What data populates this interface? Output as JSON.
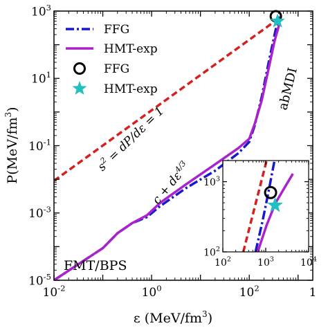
{
  "chart_data": [
    {
      "type": "line",
      "xlabel": "ε (MeV/fm",
      "xlabel_sup": "3",
      "xlabel_end": ")",
      "ylabel": "P(MeV/fm",
      "ylabel_sup": "3",
      "ylabel_end": ")",
      "x_scale": "log",
      "y_scale": "log",
      "xlim": [
        0.01,
        2000
      ],
      "ylim": [
        1e-05,
        1000
      ],
      "x_ticks": [
        {
          "v": 0.01,
          "base": "10",
          "exp": "-2"
        },
        {
          "v": 1,
          "base": "10",
          "exp": "0"
        },
        {
          "v": 100,
          "base": "10",
          "exp": "2"
        },
        {
          "v": 2000,
          "base": "1",
          "exp": ""
        }
      ],
      "y_ticks": [
        {
          "v": 1e-05,
          "base": "10",
          "exp": "-5"
        },
        {
          "v": 0.001,
          "base": "10",
          "exp": "-3"
        },
        {
          "v": 0.1,
          "base": "10",
          "exp": "-1"
        },
        {
          "v": 10,
          "base": "10",
          "exp": "1"
        },
        {
          "v": 1000,
          "base": "10",
          "exp": "3"
        }
      ],
      "grid": false,
      "legend_position": "top-left",
      "series": [
        {
          "name": "FFG",
          "style": "dashdot",
          "color": "#1818d0",
          "x": [
            0.01,
            0.1,
            0.2,
            0.4,
            0.8,
            1.5,
            5,
            20,
            60,
            100,
            130,
            180,
            250,
            330,
            400
          ],
          "y": [
            1e-05,
            9e-05,
            0.00025,
            0.0005,
            0.00075,
            0.0016,
            0.0054,
            0.018,
            0.06,
            0.13,
            0.4,
            2.8,
            30,
            200,
            700
          ]
        },
        {
          "name": "HMT-exp",
          "style": "solid",
          "color": "#aa22cc",
          "x": [
            0.01,
            0.1,
            0.2,
            0.4,
            0.8,
            1.5,
            5,
            20,
            60,
            100,
            130,
            180,
            250,
            330,
            420
          ],
          "y": [
            1e-05,
            9e-05,
            0.00025,
            0.0005,
            0.00085,
            0.002,
            0.007,
            0.028,
            0.085,
            0.16,
            0.45,
            2.2,
            20,
            130,
            450
          ]
        },
        {
          "name": "s² = dP/dε = 1",
          "style": "dashed",
          "color": "#d42020",
          "x": [
            0.01,
            400
          ],
          "y": [
            0.009,
            600
          ]
        }
      ],
      "markers": [
        {
          "name": "FFG",
          "shape": "circle",
          "color": "#000000",
          "x": 350,
          "y": 700
        },
        {
          "name": "HMT-exp",
          "shape": "star",
          "color": "#20c0c0",
          "x": 380,
          "y": 500
        }
      ],
      "annotations": [
        {
          "text": "FMT/BPS"
        },
        {
          "text": "abMDI"
        },
        {
          "text": "c + dε",
          "sup": "4/3"
        },
        {
          "text": "s",
          "sup": "2",
          "rest": " = dP/dε = 1"
        }
      ]
    },
    {
      "type": "line",
      "x_scale": "log",
      "y_scale": "log",
      "xlim": [
        100,
        10000
      ],
      "ylim": [
        100,
        2000
      ],
      "x_ticks": [
        {
          "v": 100,
          "base": "10",
          "exp": "2"
        },
        {
          "v": 1000,
          "base": "10",
          "exp": "3"
        },
        {
          "v": 10000,
          "base": "10",
          "exp": "4"
        }
      ],
      "y_ticks": [
        {
          "v": 100,
          "base": "10",
          "exp": "2"
        },
        {
          "v": 1000,
          "base": "10",
          "exp": "3"
        }
      ],
      "series": [
        {
          "name": "s² = dP/dε = 1",
          "style": "dashed",
          "color": "#d42020",
          "x": [
            300,
            1050
          ],
          "y": [
            100,
            2000
          ]
        },
        {
          "name": "FFG",
          "style": "dashdot",
          "color": "#1818d0",
          "x": [
            580,
            850,
            1150,
            1600
          ],
          "y": [
            100,
            280,
            700,
            2000
          ]
        },
        {
          "name": "HMT-exp",
          "style": "solid",
          "color": "#aa22cc",
          "x": [
            650,
            1050,
            1700,
            3000,
            4300
          ],
          "y": [
            100,
            240,
            500,
            900,
            1300
          ]
        }
      ],
      "markers": [
        {
          "name": "FFG",
          "shape": "circle",
          "color": "#000000",
          "x": 1300,
          "y": 700
        },
        {
          "name": "HMT-exp",
          "shape": "star",
          "color": "#20c0c0",
          "x": 1650,
          "y": 460
        }
      ]
    }
  ],
  "legend": [
    {
      "label": "FFG",
      "kind": "dashdot-line",
      "color": "#1818d0"
    },
    {
      "label": "HMT-exp",
      "kind": "solid-line",
      "color": "#aa22cc"
    },
    {
      "label": "FFG",
      "kind": "circle-marker",
      "color": "#000000"
    },
    {
      "label": "HMT-exp",
      "kind": "star-marker",
      "color": "#20c0c0"
    }
  ]
}
